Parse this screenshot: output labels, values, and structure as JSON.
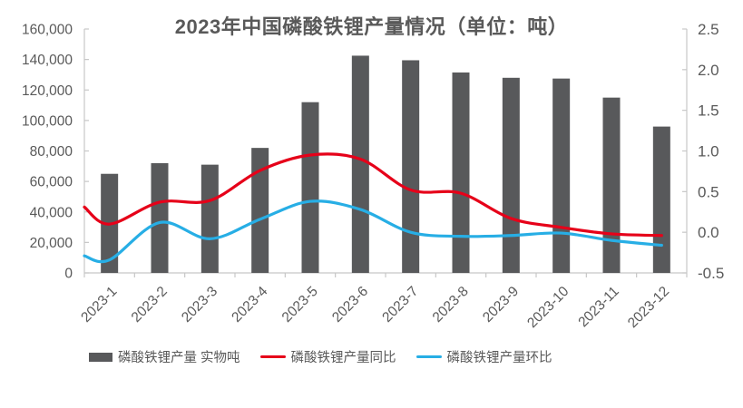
{
  "chart_data": {
    "type": "bar+line combo",
    "title": "2023年中国磷酸铁锂产量情况（单位：吨）",
    "categories": [
      "2023-1",
      "2023-2",
      "2023-3",
      "2023-4",
      "2023-5",
      "2023-6",
      "2023-7",
      "2023-8",
      "2023-9",
      "2023-10",
      "2023-11",
      "2023-12"
    ],
    "series": [
      {
        "name": "磷酸铁锂产量 实物吨",
        "type": "bar",
        "axis": "left",
        "color": "#58595b",
        "values": [
          65000,
          72000,
          71000,
          82000,
          112000,
          142500,
          139500,
          131500,
          128000,
          127500,
          115000,
          96000
        ]
      },
      {
        "name": "磷酸铁锂产量同比",
        "type": "line",
        "axis": "right",
        "color": "#e60019",
        "values": [
          0.1,
          0.37,
          0.39,
          0.76,
          0.95,
          0.9,
          0.52,
          0.48,
          0.17,
          0.06,
          -0.02,
          -0.04
        ],
        "edge_start": 0.31
      },
      {
        "name": "磷酸铁锂产量环比",
        "type": "line",
        "axis": "right",
        "color": "#27aee5",
        "values": [
          -0.34,
          0.12,
          -0.08,
          0.16,
          0.38,
          0.28,
          0.0,
          -0.05,
          -0.04,
          -0.01,
          -0.1,
          -0.16
        ],
        "edge_start": -0.29
      }
    ],
    "left_axis": {
      "min": 0,
      "max": 160000,
      "step": 20000,
      "labels": [
        "160,000",
        "140,000",
        "120,000",
        "100,000",
        "80,000",
        "60,000",
        "40,000",
        "20,000",
        "0"
      ]
    },
    "right_axis": {
      "min": -0.5,
      "max": 2.5,
      "step": 0.5,
      "labels": [
        "2.5",
        "2.0",
        "1.5",
        "1.0",
        "0.5",
        "0.0",
        "-0.5"
      ]
    },
    "grid": false,
    "legend_position": "bottom",
    "x_label_rotation": -45
  },
  "style": {
    "text_color": "#595959",
    "axis_color": "#c7c7c7",
    "background": "#ffffff"
  }
}
